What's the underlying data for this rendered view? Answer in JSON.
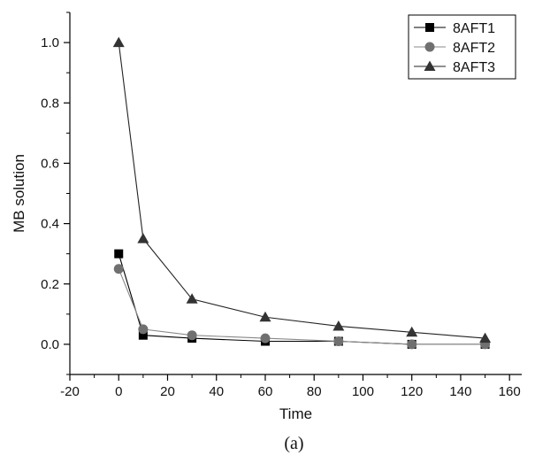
{
  "chart_data": {
    "type": "line",
    "xlabel": "Time",
    "ylabel": "MB solution",
    "caption": "(a)",
    "xlim": [
      -20,
      165
    ],
    "ylim": [
      -0.1,
      1.1
    ],
    "xticks": [
      -20,
      0,
      20,
      40,
      60,
      80,
      100,
      120,
      140,
      160
    ],
    "xtick_labels": [
      "-20",
      "0",
      "20",
      "40",
      "60",
      "80",
      "100",
      "120",
      "140",
      "160"
    ],
    "yticks": [
      0.0,
      0.2,
      0.4,
      0.6,
      0.8,
      1.0
    ],
    "ytick_labels": [
      "0.0",
      "0.2",
      "0.4",
      "0.6",
      "0.8",
      "1.0"
    ],
    "grid": false,
    "legend_position": "top-right",
    "x": [
      0,
      10,
      30,
      60,
      90,
      120,
      150
    ],
    "series": [
      {
        "name": "8AFT1",
        "marker": "square",
        "color": "#000000",
        "line_color": "#000000",
        "values": [
          0.3,
          0.03,
          0.02,
          0.01,
          0.01,
          0.0,
          0.0
        ]
      },
      {
        "name": "8AFT2",
        "marker": "circle",
        "color": "#707070",
        "line_color": "#888888",
        "values": [
          0.25,
          0.05,
          0.03,
          0.02,
          0.01,
          0.0,
          0.0
        ]
      },
      {
        "name": "8AFT3",
        "marker": "triangle",
        "color": "#333333",
        "line_color": "#222222",
        "values": [
          1.0,
          0.35,
          0.15,
          0.09,
          0.06,
          0.04,
          0.02
        ]
      }
    ]
  }
}
